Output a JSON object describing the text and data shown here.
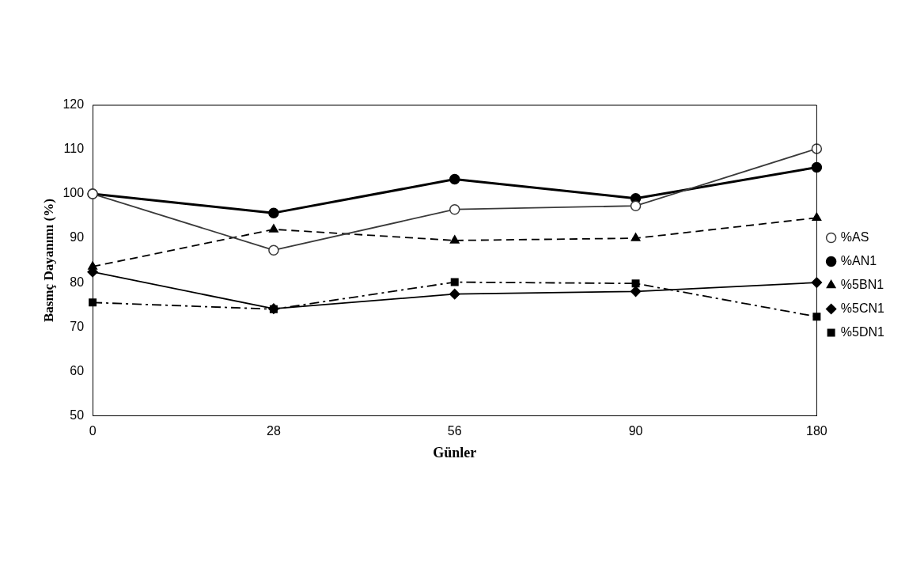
{
  "chart_data": {
    "type": "line",
    "xlabel": "Günler",
    "ylabel": "Basmç Dayanımı (%)",
    "categories": [
      "0",
      "28",
      "56",
      "90",
      "180"
    ],
    "series": [
      {
        "name": "%AS",
        "color": "#3a3a3a",
        "marker": "circle",
        "line_style": "solid",
        "values": [
          100,
          87.3,
          96.5,
          97.3,
          110.2
        ]
      },
      {
        "name": "%AN1",
        "color": "#000000",
        "marker": "circle",
        "line_style": "solid",
        "values": [
          100,
          95.7,
          103.3,
          99,
          106
        ]
      },
      {
        "name": "%5BN1",
        "color": "#000000",
        "marker": "triangle",
        "line_style": "dashed",
        "values": [
          83.6,
          92,
          89.5,
          90,
          94.6
        ]
      },
      {
        "name": "%5CN1",
        "color": "#000000",
        "marker": "diamond",
        "line_style": "solid",
        "values": [
          82.4,
          74.1,
          77.4,
          78,
          80
        ]
      },
      {
        "name": "%5DN1",
        "color": "#000000",
        "marker": "square",
        "line_style": "dashdot",
        "values": [
          75.5,
          74,
          80.1,
          79.8,
          72.3
        ]
      }
    ],
    "ylim": [
      50,
      120
    ],
    "yticks": [
      50,
      60,
      70,
      80,
      90,
      100,
      110,
      120
    ],
    "grid": false,
    "legend": "right"
  }
}
